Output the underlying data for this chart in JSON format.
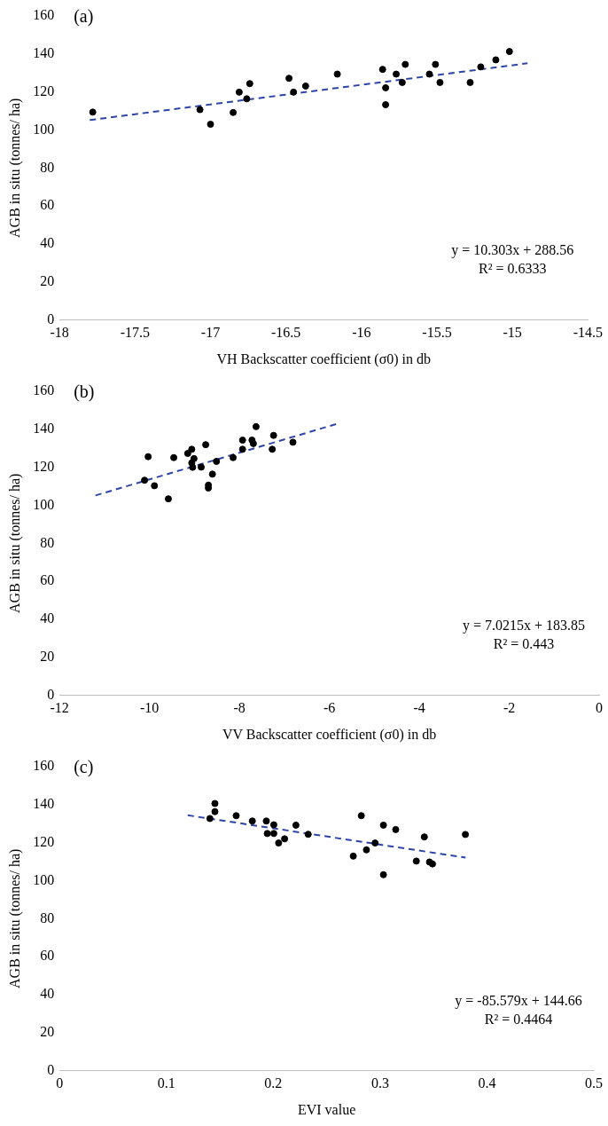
{
  "chart_data": [
    {
      "type": "scatter",
      "title": "(a)",
      "xlabel": "VH Backscatter coefficient (σ0) in db",
      "ylabel": "AGB in situ (tonnes/ ha)",
      "xlim": [
        -18,
        -14.5
      ],
      "xticks": [
        -18,
        -17.5,
        -17,
        -16.5,
        -16,
        -15.5,
        -15,
        -14.5
      ],
      "ylim": [
        0,
        160
      ],
      "yticks": [
        0,
        20,
        40,
        60,
        80,
        100,
        120,
        140,
        160
      ],
      "marker": "circle",
      "grid": false,
      "annotations": [
        "y = 10.303x + 288.56",
        "R² = 0.6333"
      ],
      "series": [
        {
          "color": "#000000",
          "x": [
            -17.78,
            -17.07,
            -17.0,
            -16.85,
            -16.81,
            -16.76,
            -16.74,
            -16.48,
            -16.45,
            -16.37,
            -16.16,
            -15.86,
            -15.84,
            -15.84,
            -15.77,
            -15.73,
            -15.71,
            -15.55,
            -15.51,
            -15.48,
            -15.28,
            -15.21,
            -15.11,
            -15.02
          ],
          "values": [
            109.4,
            110.7,
            103,
            109.2,
            119.9,
            116.4,
            124.4,
            127.2,
            119.9,
            123.1,
            129.4,
            131.9,
            122.2,
            113.3,
            129.4,
            125.0,
            134.5,
            129.4,
            134.5,
            125.0,
            125.0,
            133.2,
            136.9,
            141.3
          ]
        },
        {
          "type": "line",
          "color": "#2e45a8",
          "line_style": "dashed",
          "marker": "none",
          "x": [
            -17.8,
            -14.9
          ],
          "values": [
            105.2,
            135.1
          ]
        }
      ]
    },
    {
      "type": "scatter",
      "title": "(b)",
      "xlabel": "VV Backscatter coefficient (σ0) in db",
      "ylabel": "AGB in situ (tonnes/ ha)",
      "xlim": [
        -12,
        0
      ],
      "xticks": [
        -12,
        -10,
        -8,
        -6,
        -4,
        -2,
        0
      ],
      "ylim": [
        0,
        160
      ],
      "yticks": [
        0,
        20,
        40,
        60,
        80,
        100,
        120,
        140,
        160
      ],
      "marker": "circle",
      "grid": false,
      "annotations": [
        "y = 7.0215x + 183.85",
        "R² = 0.443"
      ],
      "series": [
        {
          "color": "#000000",
          "x": [
            -10.03,
            -10.11,
            -9.89,
            -9.58,
            -9.46,
            -9.15,
            -9.06,
            -9.01,
            -9.06,
            -9.04,
            -8.85,
            -8.75,
            -8.69,
            -8.69,
            -8.6,
            -8.51,
            -8.14,
            -7.93,
            -7.93,
            -7.72,
            -7.69,
            -7.63,
            -7.27,
            -7.24,
            -6.81
          ],
          "values": [
            125.6,
            113.2,
            110.3,
            103.4,
            125.1,
            127.3,
            129.5,
            124.6,
            122.3,
            120.0,
            120.1,
            131.9,
            110.6,
            109.1,
            116.4,
            123.1,
            125.1,
            134.3,
            129.5,
            134.3,
            132.5,
            141.4,
            129.5,
            136.8,
            133.2
          ]
        },
        {
          "type": "line",
          "color": "#2e45a8",
          "line_style": "dashed",
          "marker": "none",
          "x": [
            -11.2,
            -5.8
          ],
          "values": [
            105.2,
            143.1
          ]
        }
      ]
    },
    {
      "type": "scatter",
      "title": "(c)",
      "xlabel": "EVI value",
      "ylabel": "AGB in situ (tonnes/ ha)",
      "xlim": [
        0,
        0.5
      ],
      "xticks": [
        0,
        0.1,
        0.2,
        0.3,
        0.4,
        0.5
      ],
      "ylim": [
        0,
        160
      ],
      "yticks": [
        0,
        20,
        40,
        60,
        80,
        100,
        120,
        140,
        160
      ],
      "marker": "circle",
      "grid": false,
      "annotations": [
        "y = -85.579x + 144.66",
        "R² = 0.4464"
      ],
      "series": [
        {
          "color": "#000000",
          "x": [
            0.1454,
            0.1454,
            0.1407,
            0.1653,
            0.1804,
            0.1935,
            0.2005,
            0.1944,
            0.2005,
            0.205,
            0.2106,
            0.2212,
            0.2327,
            0.2824,
            0.3031,
            0.3146,
            0.2953,
            0.2872,
            0.2749,
            0.3031,
            0.3414,
            0.3798,
            0.3339,
            0.3462,
            0.349
          ],
          "values": [
            140.6,
            136.3,
            132.7,
            134.2,
            131.4,
            131.4,
            129.4,
            124.8,
            124.8,
            119.8,
            122.0,
            129.2,
            124.4,
            134.2,
            129.2,
            126.9,
            119.8,
            116.2,
            112.9,
            103.1,
            123.0,
            124.3,
            110.3,
            109.8,
            108.8
          ]
        },
        {
          "type": "line",
          "color": "#2e45a8",
          "line_style": "dashed",
          "marker": "none",
          "x": [
            0.12,
            0.38
          ],
          "values": [
            134.4,
            112.1
          ]
        }
      ]
    }
  ]
}
